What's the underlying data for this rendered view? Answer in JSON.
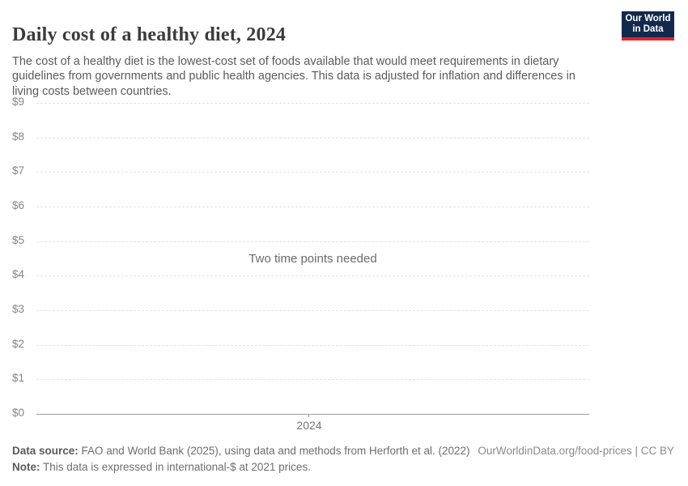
{
  "header": {
    "title": "Daily cost of a healthy diet, 2024",
    "subtitle": "The cost of a healthy diet is the lowest-cost set of foods available that would meet requirements in dietary guidelines from governments and public health agencies. This data is adjusted for inflation and differences in living costs between countries."
  },
  "logo": {
    "line1": "Our World",
    "line2": "in Data",
    "bg_color": "#12294d",
    "accent_color": "#e0232e"
  },
  "chart_data": {
    "type": "line",
    "title": "Daily cost of a healthy diet, 2024",
    "series": [],
    "empty_message": "Two time points needed",
    "xlabel": "",
    "ylabel": "",
    "ylim": [
      0,
      9
    ],
    "yticks": [
      {
        "label": "$9",
        "value": 9
      },
      {
        "label": "$8",
        "value": 8
      },
      {
        "label": "$7",
        "value": 7
      },
      {
        "label": "$6",
        "value": 6
      },
      {
        "label": "$5",
        "value": 5
      },
      {
        "label": "$4",
        "value": 4
      },
      {
        "label": "$3",
        "value": 3
      },
      {
        "label": "$2",
        "value": 2
      },
      {
        "label": "$1",
        "value": 1
      },
      {
        "label": "$0",
        "value": 0
      }
    ],
    "xticks": [
      "2024"
    ],
    "grid": "horizontal-dashed",
    "legend": "none"
  },
  "footer": {
    "data_source_label": "Data source:",
    "data_source_text": " FAO and World Bank (2025), using data and methods from Herforth et al. (2022)",
    "note_label": "Note:",
    "note_text": " This data is expressed in international-$ at 2021 prices.",
    "attribution": "OurWorldinData.org/food-prices | CC BY"
  }
}
